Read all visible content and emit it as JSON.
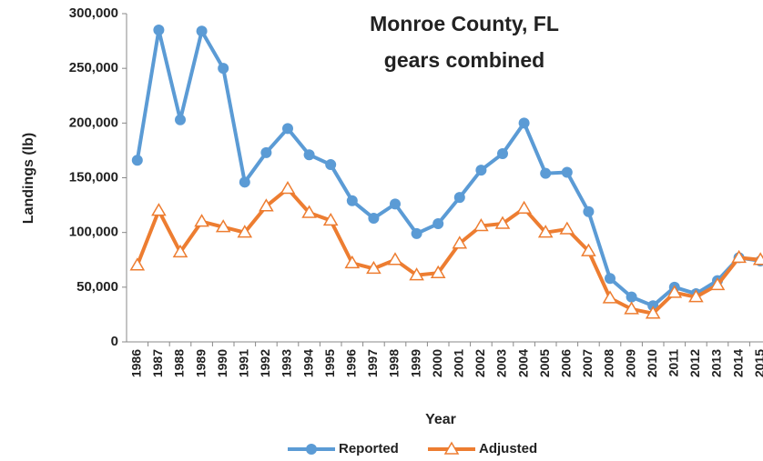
{
  "chart_data": {
    "type": "line",
    "title": [
      "Monroe County, FL",
      "gears combined"
    ],
    "x_label": "Year",
    "y_label": "Landings (lb)",
    "categories": [
      "1986",
      "1987",
      "1988",
      "1989",
      "1990",
      "1991",
      "1992",
      "1993",
      "1994",
      "1995",
      "1996",
      "1997",
      "1998",
      "1999",
      "2000",
      "2001",
      "2002",
      "2003",
      "2004",
      "2005",
      "2006",
      "2007",
      "2008",
      "2009",
      "2010",
      "2011",
      "2012",
      "2013",
      "2014",
      "2015"
    ],
    "series": [
      {
        "name": "Reported",
        "color": "#5b9bd5",
        "marker": "circle",
        "values": [
          166000,
          285000,
          203000,
          284000,
          250000,
          146000,
          173000,
          195000,
          171000,
          162000,
          129000,
          113000,
          126000,
          99000,
          108000,
          132000,
          157000,
          172000,
          200000,
          154000,
          155000,
          119000,
          58000,
          41000,
          33000,
          50000,
          44000,
          56000,
          77000,
          74000
        ]
      },
      {
        "name": "Adjusted",
        "color": "#ed7d31",
        "marker": "triangle",
        "values": [
          70000,
          120000,
          82000,
          110000,
          105000,
          100000,
          124000,
          140000,
          118000,
          111000,
          72000,
          67000,
          75000,
          61000,
          63000,
          90000,
          106000,
          108000,
          122000,
          100000,
          103000,
          83000,
          40000,
          30000,
          26000,
          45000,
          41000,
          52000,
          77000,
          75000
        ]
      }
    ],
    "ylim": [
      0,
      300000
    ],
    "yticks": [
      0,
      {
        "value": 50000,
        "label": "50,000"
      },
      {
        "value": 100000,
        "label": "100,000"
      },
      {
        "value": 150000,
        "label": "150,000"
      },
      {
        "value": 200000,
        "label": "200,000"
      },
      {
        "value": 250000,
        "label": "250,000"
      },
      {
        "value": 300000,
        "label": "300,000"
      }
    ],
    "grid": false,
    "legend": "bottom"
  }
}
